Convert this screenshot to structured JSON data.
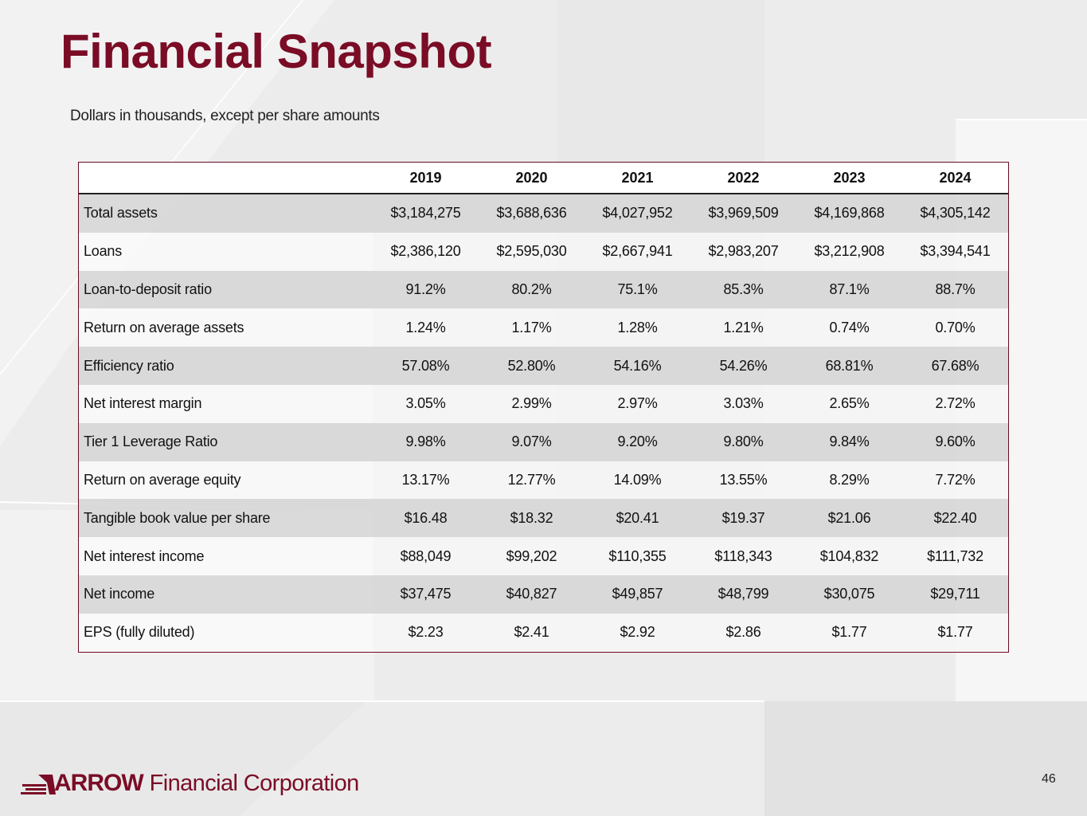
{
  "slide": {
    "title": "Financial Snapshot",
    "subtitle": "Dollars in thousands, except per share amounts",
    "page_number": "46"
  },
  "table": {
    "years": [
      "2019",
      "2020",
      "2021",
      "2022",
      "2023",
      "2024"
    ],
    "rows": [
      {
        "label": "Total assets",
        "values": [
          "$3,184,275",
          "$3,688,636",
          "$4,027,952",
          "$3,969,509",
          "$4,169,868",
          "$4,305,142"
        ]
      },
      {
        "label": "Loans",
        "values": [
          "$2,386,120",
          "$2,595,030",
          "$2,667,941",
          "$2,983,207",
          "$3,212,908",
          "$3,394,541"
        ]
      },
      {
        "label": "Loan-to-deposit ratio",
        "values": [
          "91.2%",
          "80.2%",
          "75.1%",
          "85.3%",
          "87.1%",
          "88.7%"
        ]
      },
      {
        "label": "Return on average assets",
        "values": [
          "1.24%",
          "1.17%",
          "1.28%",
          "1.21%",
          "0.74%",
          "0.70%"
        ]
      },
      {
        "label": "Efficiency ratio",
        "values": [
          "57.08%",
          "52.80%",
          "54.16%",
          "54.26%",
          "68.81%",
          "67.68%"
        ]
      },
      {
        "label": "Net interest margin",
        "values": [
          "3.05%",
          "2.99%",
          "2.97%",
          "3.03%",
          "2.65%",
          "2.72%"
        ]
      },
      {
        "label": "Tier 1 Leverage Ratio",
        "values": [
          "9.98%",
          "9.07%",
          "9.20%",
          "9.80%",
          "9.84%",
          "9.60%"
        ]
      },
      {
        "label": "Return on average equity",
        "values": [
          "13.17%",
          "12.77%",
          "14.09%",
          "13.55%",
          "8.29%",
          "7.72%"
        ]
      },
      {
        "label": "Tangible book value per share",
        "values": [
          "$16.48",
          "$18.32",
          "$20.41",
          "$19.37",
          "$21.06",
          "$22.40"
        ]
      },
      {
        "label": "Net interest income",
        "values": [
          "$88,049",
          "$99,202",
          "$110,355",
          "$118,343",
          "$104,832",
          "$111,732"
        ]
      },
      {
        "label": "Net income",
        "values": [
          "$37,475",
          "$40,827",
          "$49,857",
          "$48,799",
          "$30,075",
          "$29,711"
        ]
      },
      {
        "label": "EPS (fully diluted)",
        "values": [
          "$2.23",
          "$2.41",
          "$2.92",
          "$2.86",
          "$1.77",
          "$1.77"
        ]
      }
    ]
  },
  "logo": {
    "brand_word": "ARROW",
    "rest": "Financial Corporation",
    "icon": "arrow-logo-icon"
  },
  "colors": {
    "brand": "#7a0c26",
    "text": "#111111",
    "row_shade": "#d6d6d6"
  }
}
